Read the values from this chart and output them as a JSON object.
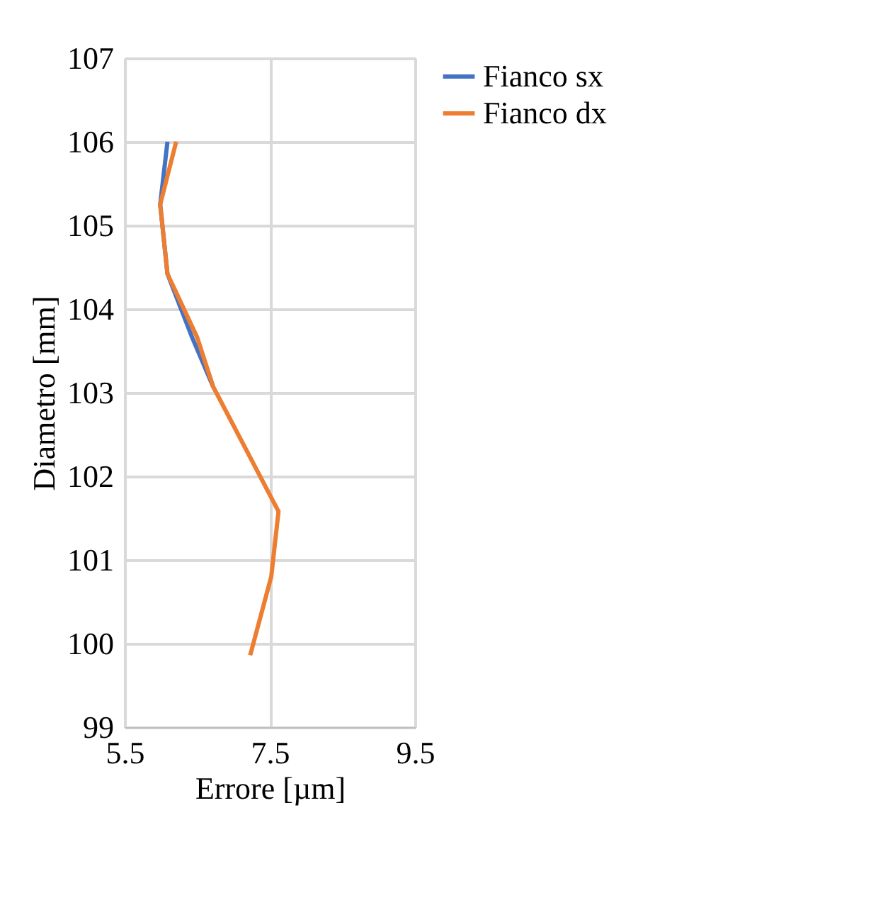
{
  "chart_data": {
    "type": "line",
    "xlabel": "Errore [µm]",
    "ylabel": "Diametro [mm]",
    "xlim": [
      5.5,
      9.5
    ],
    "xticks": [
      5.5,
      7.5,
      9.5
    ],
    "ylim": [
      99,
      107
    ],
    "yticks": [
      99,
      100,
      101,
      102,
      103,
      104,
      105,
      106,
      107
    ],
    "grid": true,
    "legend": "right",
    "marker": "none",
    "line_style": "solid",
    "series": [
      {
        "name": "Fianco sx",
        "color": "#4472c4",
        "x": [
          6.09,
          5.99,
          6.09,
          6.43,
          6.72
        ],
        "values": [
          106.0,
          105.25,
          104.42,
          103.66,
          103.07
        ]
      },
      {
        "name": "Fianco dx",
        "color": "#ed7d31",
        "x": [
          6.21,
          5.99,
          6.09,
          6.5,
          6.72,
          7.62,
          7.52,
          7.23
        ],
        "values": [
          106.0,
          105.25,
          104.42,
          103.66,
          103.07,
          101.58,
          100.8,
          99.86
        ]
      }
    ]
  }
}
